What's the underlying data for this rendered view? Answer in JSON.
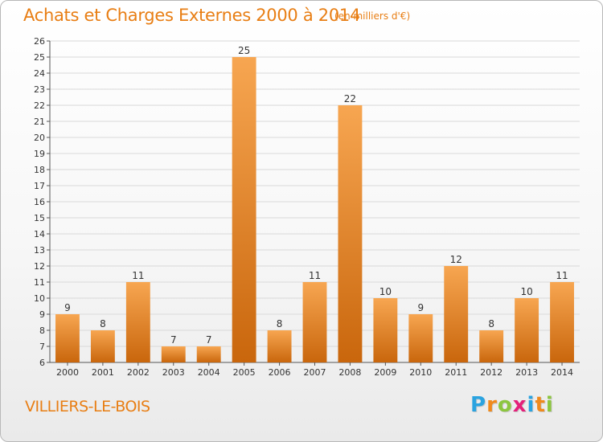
{
  "header": {
    "title": "Achats et Charges Externes 2000 à 2014",
    "subtitle": "(en milliers d'€)"
  },
  "footer": {
    "town": "VILLIERS-LE-BOIS",
    "logo_letters": [
      "P",
      "r",
      "o",
      "x",
      "i",
      "t",
      "i"
    ],
    "logo_colors": [
      "#2aa3e0",
      "#f08a1c",
      "#8cc63f",
      "#e4207a",
      "#2aa3e0",
      "#f08a1c",
      "#8cc63f"
    ]
  },
  "colors": {
    "accent": "#e87e14",
    "bar_light": "#f7a651",
    "bar_dark": "#c9660c",
    "grid": "#d9d9d9"
  },
  "chart_data": {
    "type": "bar",
    "title": "Achats et Charges Externes 2000 à 2014",
    "subtitle": "(en milliers d'€)",
    "categories": [
      "2000",
      "2001",
      "2002",
      "2003",
      "2004",
      "2005",
      "2006",
      "2007",
      "2008",
      "2009",
      "2010",
      "2011",
      "2012",
      "2013",
      "2014"
    ],
    "values": [
      9,
      8,
      11,
      7,
      7,
      25,
      8,
      11,
      22,
      10,
      9,
      12,
      8,
      10,
      11
    ],
    "ylim": [
      6,
      26
    ],
    "yticks": [
      6,
      7,
      8,
      9,
      10,
      11,
      12,
      13,
      14,
      15,
      16,
      17,
      18,
      19,
      20,
      21,
      22,
      23,
      24,
      25,
      26
    ],
    "grid": true,
    "xlabel": "",
    "ylabel": ""
  }
}
